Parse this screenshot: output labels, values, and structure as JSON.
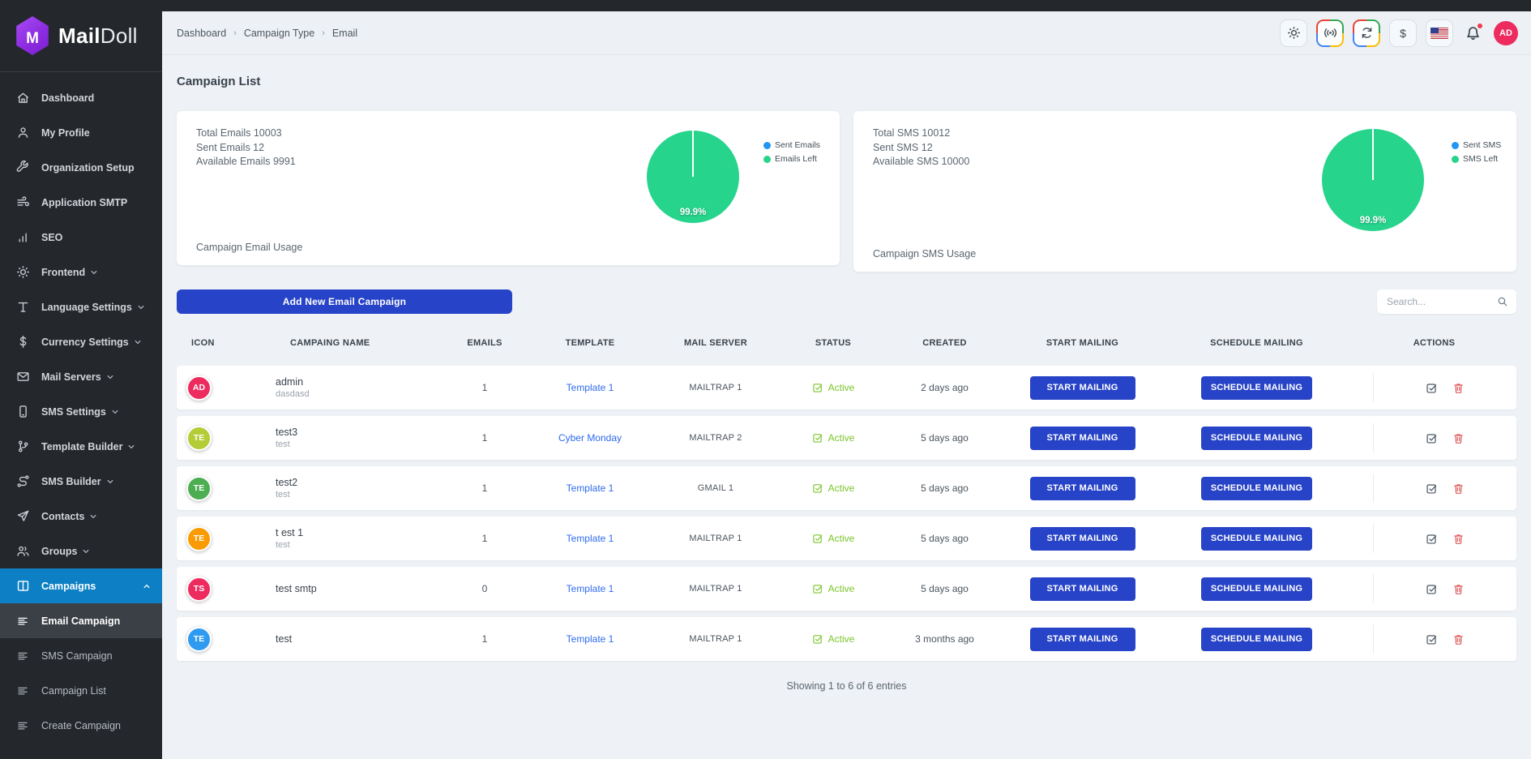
{
  "brand": {
    "name_bold": "Mail",
    "name_light": "Doll"
  },
  "topbar": {
    "breadcrumb": [
      "Dashboard",
      "Campaign Type",
      "Email"
    ],
    "breadcrumb_separator": "›",
    "currency_symbol": "$",
    "avatar_initials": "AD",
    "icons": [
      "theme-sun-icon",
      "broadcast-icon",
      "sync-icon",
      "currency-dollar-icon",
      "us-flag-icon",
      "notifications-bell-icon"
    ]
  },
  "sidebar": {
    "items": [
      {
        "label": "Dashboard",
        "icon": "home"
      },
      {
        "label": "My Profile",
        "icon": "user"
      },
      {
        "label": "Organization Setup",
        "icon": "wrench"
      },
      {
        "label": "Application SMTP",
        "icon": "wind"
      },
      {
        "label": "SEO",
        "icon": "bars"
      },
      {
        "label": "Frontend",
        "icon": "sun",
        "chevron": true
      },
      {
        "label": "Language Settings",
        "icon": "text",
        "chevron": true
      },
      {
        "label": "Currency Settings",
        "icon": "dollar",
        "chevron": true
      },
      {
        "label": "Mail Servers",
        "icon": "mail",
        "chevron": true
      },
      {
        "label": "SMS Settings",
        "icon": "phone",
        "chevron": true
      },
      {
        "label": "Template Builder",
        "icon": "branch",
        "chevron": true
      },
      {
        "label": "SMS Builder",
        "icon": "route",
        "chevron": true
      },
      {
        "label": "Contacts",
        "icon": "send",
        "chevron": true
      },
      {
        "label": "Groups",
        "icon": "users",
        "chevron": true
      },
      {
        "label": "Campaigns",
        "icon": "columns",
        "chevron": true,
        "active": true,
        "expanded": true
      }
    ],
    "submenu": [
      {
        "label": "Email Campaign",
        "active": true
      },
      {
        "label": "SMS Campaign"
      },
      {
        "label": "Campaign List"
      },
      {
        "label": "Create Campaign"
      }
    ]
  },
  "page_title": "Campaign List",
  "usage_cards": [
    {
      "stats": [
        "Total Emails 10003",
        "Sent Emails 12",
        "Available Emails 9991"
      ],
      "percent_label": "99.9%",
      "legend": [
        {
          "label": "Sent Emails",
          "color": "#2196f3"
        },
        {
          "label": "Emails Left",
          "color": "#26d48c"
        }
      ],
      "footer": "Campaign Email Usage"
    },
    {
      "stats": [
        "Total SMS 10012",
        "Sent SMS 12",
        "Available SMS 10000"
      ],
      "percent_label": "99.9%",
      "legend": [
        {
          "label": "Sent SMS",
          "color": "#2196f3"
        },
        {
          "label": "SMS Left",
          "color": "#26d48c"
        }
      ],
      "footer": "Campaign SMS Usage"
    }
  ],
  "chart_data": [
    {
      "type": "pie",
      "title": "Campaign Email Usage",
      "labels": [
        "Sent Emails",
        "Emails Left"
      ],
      "values": [
        12,
        9991
      ],
      "colors": [
        "#2196f3",
        "#26d48c"
      ],
      "percent_shown": "99.9%",
      "legend_position": "right"
    },
    {
      "type": "pie",
      "title": "Campaign SMS Usage",
      "labels": [
        "Sent SMS",
        "SMS Left"
      ],
      "values": [
        12,
        10000
      ],
      "colors": [
        "#2196f3",
        "#26d48c"
      ],
      "percent_shown": "99.9%",
      "legend_position": "right"
    }
  ],
  "toolbar": {
    "add_button_label": "Add New Email Campaign",
    "search_placeholder": "Search..."
  },
  "table": {
    "headers": [
      "ICON",
      "CAMPAING NAME",
      "EMAILS",
      "TEMPLATE",
      "MAIL SERVER",
      "STATUS",
      "CREATED",
      "START MAILING",
      "SCHEDULE MAILING",
      "ACTIONS"
    ],
    "buttons": {
      "start": "START MAILING",
      "schedule": "SCHEDULE MAILING"
    },
    "action_icons": [
      "edit-icon",
      "trash-icon"
    ],
    "rows": [
      {
        "initials": "AD",
        "avatar_color": "#ed2b5f",
        "name": "admin",
        "subtitle": "dasdasd",
        "emails": "1",
        "template": "Template 1",
        "mail_server": "MAILTRAP 1",
        "status": "Active",
        "created": "2 days ago"
      },
      {
        "initials": "TE",
        "avatar_color": "#b4cc35",
        "name": "test3",
        "subtitle": "test",
        "emails": "1",
        "template": "Cyber Monday",
        "mail_server": "MAILTRAP 2",
        "status": "Active",
        "created": "5 days ago"
      },
      {
        "initials": "TE",
        "avatar_color": "#4cae51",
        "name": "test2",
        "subtitle": "test",
        "emails": "1",
        "template": "Template 1",
        "mail_server": "GMAIL 1",
        "status": "Active",
        "created": "5 days ago"
      },
      {
        "initials": "TE",
        "avatar_color": "#fb9b04",
        "name": "t est 1",
        "subtitle": "test",
        "emails": "1",
        "template": "Template 1",
        "mail_server": "MAILTRAP 1",
        "status": "Active",
        "created": "5 days ago"
      },
      {
        "initials": "TS",
        "avatar_color": "#ed2b5f",
        "name": "test smtp",
        "subtitle": "",
        "emails": "0",
        "template": "Template 1",
        "mail_server": "MAILTRAP 1",
        "status": "Active",
        "created": "5 days ago"
      },
      {
        "initials": "TE",
        "avatar_color": "#2e9bf0",
        "name": "test",
        "subtitle": "",
        "emails": "1",
        "template": "Template 1",
        "mail_server": "MAILTRAP 1",
        "status": "Active",
        "created": "3 months ago"
      }
    ]
  },
  "table_footer": "Showing 1 to 6 of 6 entries",
  "colors": {
    "sidebar_bg": "#24272c",
    "active_nav_blue": "#0d80c5",
    "primary_button_blue": "#2743c7",
    "pie_green": "#26d48c",
    "legend_blue": "#2196f3",
    "status_green": "#7cc52b",
    "danger_red": "#e05c5c",
    "brand_purple": "#8d2ce0",
    "avatar_pink": "#ed2b5f"
  }
}
